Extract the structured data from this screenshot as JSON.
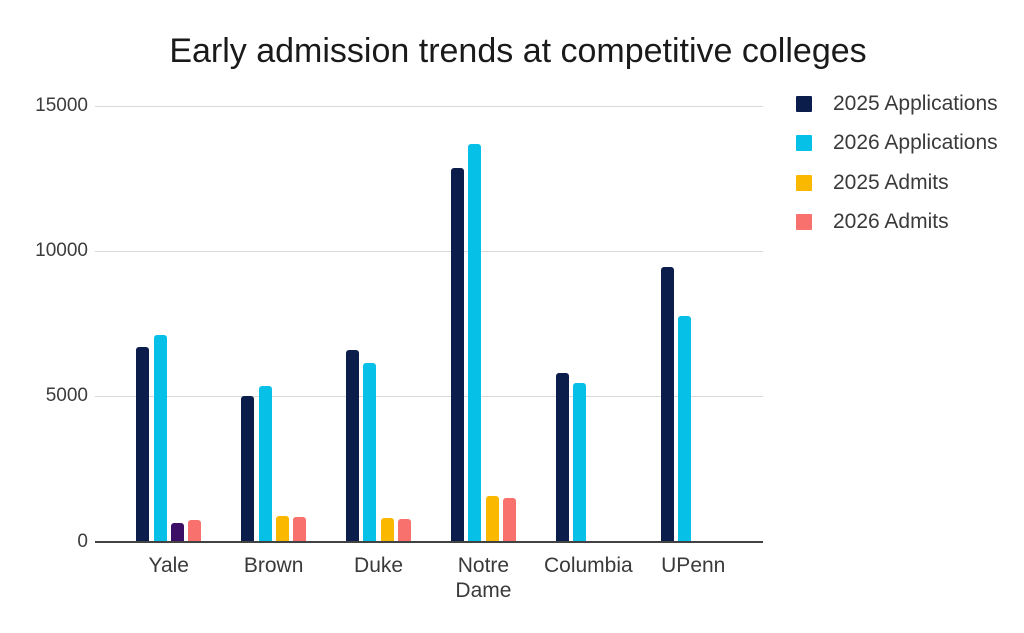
{
  "chart_data": {
    "type": "bar",
    "title": "Early admission trends at competitive colleges",
    "categories": [
      "Yale",
      "Brown",
      "Duke",
      "Notre Dame",
      "Columbia",
      "UPenn"
    ],
    "series": [
      {
        "name": "2025 Applications",
        "color": "#0b1e4b",
        "values": [
          6700,
          5000,
          6600,
          12850,
          5800,
          9450
        ]
      },
      {
        "name": "2026 Applications",
        "color": "#06c0e8",
        "values": [
          7100,
          5350,
          6150,
          13700,
          5450,
          7780
        ]
      },
      {
        "name": "2025 Admits",
        "color": "#fbb800",
        "values": [
          650,
          880,
          800,
          1570,
          null,
          null
        ]
      },
      {
        "name": "2026 Admits",
        "color": "#f9716c",
        "values": [
          740,
          850,
          780,
          1500,
          null,
          null
        ]
      }
    ],
    "point_color_overrides": [
      {
        "series_index": 2,
        "category_index": 0,
        "color": "#3d0e66"
      }
    ],
    "y_axis": {
      "min": 0,
      "max": 15000,
      "tick_values": [
        0,
        5000,
        10000,
        15000
      ],
      "tick_labels": [
        "0",
        "5000",
        "10000",
        "15000"
      ]
    },
    "legend_position": "right",
    "grid": true,
    "ui_colors": {
      "gridline": "#d9d9d9",
      "axis_line": "#424242",
      "axis_text": "#3c3c3c",
      "title_text": "#1a1a1a",
      "background": "#ffffff"
    }
  }
}
